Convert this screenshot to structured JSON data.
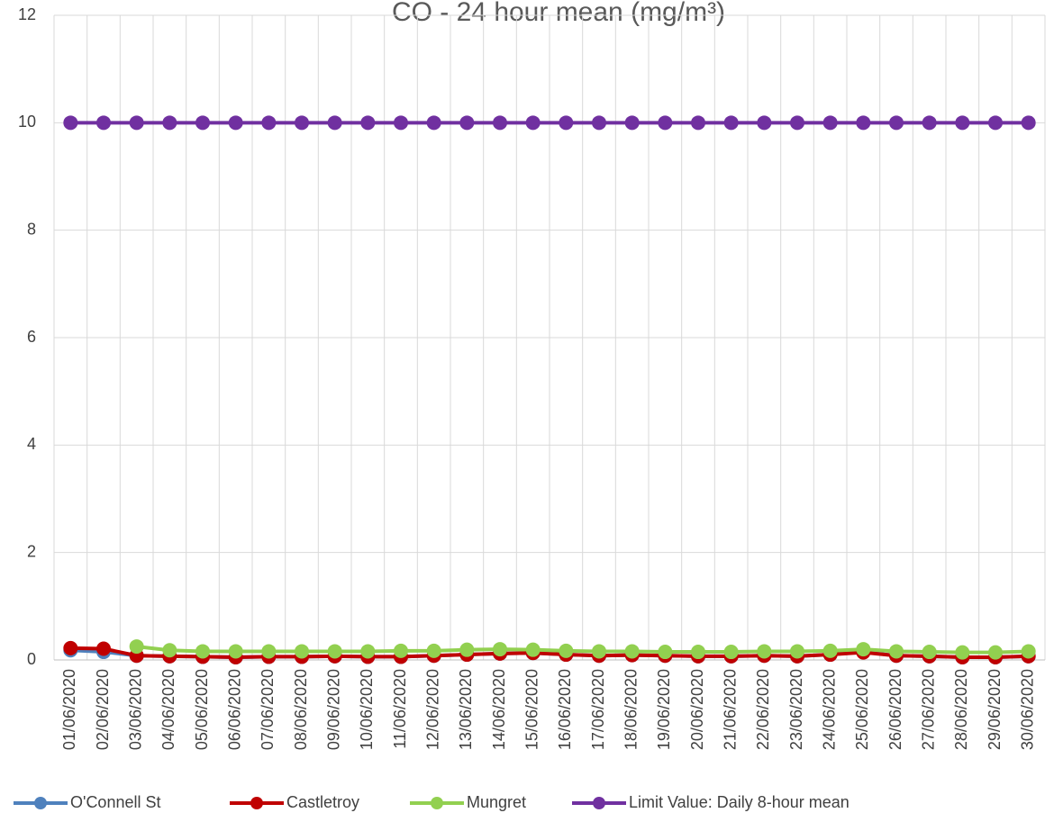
{
  "chart_data": {
    "type": "line",
    "title": "CO - 24 hour mean (mg/m³)",
    "categories": [
      "01/06/2020",
      "02/06/2020",
      "03/06/2020",
      "04/06/2020",
      "05/06/2020",
      "06/06/2020",
      "07/06/2020",
      "08/06/2020",
      "09/06/2020",
      "10/06/2020",
      "11/06/2020",
      "12/06/2020",
      "13/06/2020",
      "14/06/2020",
      "15/06/2020",
      "16/06/2020",
      "17/06/2020",
      "18/06/2020",
      "19/06/2020",
      "20/06/2020",
      "21/06/2020",
      "22/06/2020",
      "23/06/2020",
      "24/06/2020",
      "25/06/2020",
      "26/06/2020",
      "27/06/2020",
      "28/06/2020",
      "29/06/2020",
      "30/06/2020"
    ],
    "series": [
      {
        "name": "O'Connell St",
        "color": "#4f81bd",
        "values": [
          0.18,
          0.15,
          0.08,
          0.07,
          0.06,
          0.05,
          0.06,
          0.06,
          0.07,
          0.06,
          0.06,
          0.08,
          0.1,
          0.12,
          0.13,
          0.1,
          0.08,
          0.09,
          0.08,
          0.07,
          0.07,
          0.08,
          0.07,
          0.1,
          0.15,
          0.08,
          0.07,
          0.05,
          0.05,
          0.07
        ]
      },
      {
        "name": "Castletroy",
        "color": "#c00000",
        "values": [
          0.22,
          0.21,
          0.08,
          0.07,
          0.06,
          0.05,
          0.06,
          0.06,
          0.07,
          0.06,
          0.06,
          0.08,
          0.1,
          0.12,
          0.13,
          0.1,
          0.08,
          0.09,
          0.08,
          0.07,
          0.07,
          0.08,
          0.07,
          0.1,
          0.14,
          0.08,
          0.07,
          0.05,
          0.05,
          0.07
        ]
      },
      {
        "name": "Mungret",
        "color": "#92d050",
        "values": [
          null,
          null,
          0.25,
          0.18,
          0.16,
          0.16,
          0.16,
          0.16,
          0.16,
          0.16,
          0.17,
          0.17,
          0.19,
          0.2,
          0.19,
          0.17,
          0.16,
          0.16,
          0.15,
          0.15,
          0.15,
          0.16,
          0.16,
          0.17,
          0.2,
          0.16,
          0.15,
          0.14,
          0.14,
          0.16
        ]
      },
      {
        "name": "Limit Value: Daily 8-hour mean",
        "color": "#7030a0",
        "values": [
          10,
          10,
          10,
          10,
          10,
          10,
          10,
          10,
          10,
          10,
          10,
          10,
          10,
          10,
          10,
          10,
          10,
          10,
          10,
          10,
          10,
          10,
          10,
          10,
          10,
          10,
          10,
          10,
          10,
          10
        ]
      }
    ],
    "ylim": [
      0,
      12
    ],
    "yticks": [
      0,
      2,
      4,
      6,
      8,
      10,
      12
    ],
    "grid": true,
    "legend": "bottom"
  }
}
